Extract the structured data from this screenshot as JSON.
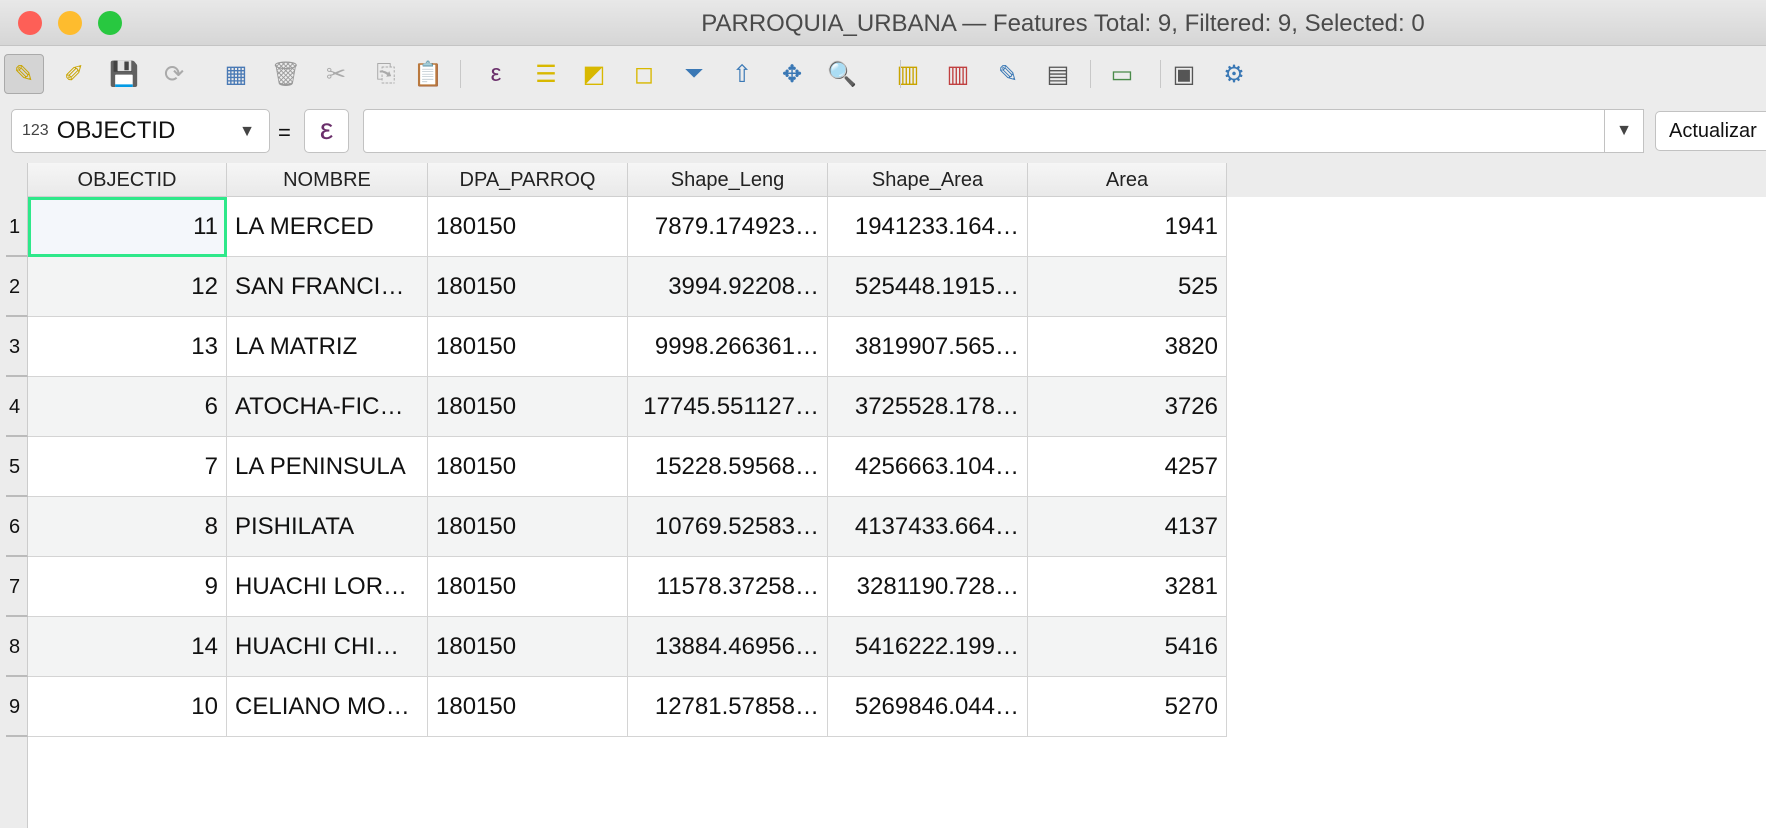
{
  "window": {
    "title": "PARROQUIA_URBANA — Features Total: 9, Filtered: 9, Selected: 0"
  },
  "toolbar": {
    "icons": [
      "toggle-editing-icon",
      "multi-edit-icon",
      "save-edits-icon",
      "reload-icon",
      "add-feature-icon",
      "delete-selected-icon",
      "cut-icon",
      "copy-icon",
      "paste-icon",
      "select-by-expression-icon",
      "select-all-icon",
      "invert-selection-icon",
      "deselect-all-icon",
      "filter-select-icon",
      "move-selection-top-icon",
      "pan-to-selected-icon",
      "zoom-to-selected-icon",
      "new-field-icon",
      "delete-field-icon",
      "open-field-calculator-icon",
      "conditional-formatting-icon",
      "actions-icon",
      "dock-icon",
      "help-icon"
    ]
  },
  "filter": {
    "field_type": "123",
    "field": "OBJECTID",
    "equals": "=",
    "expression_icon": "ε",
    "value": "",
    "update_label": "Actualizar"
  },
  "table": {
    "columns": [
      "OBJECTID",
      "NOMBRE",
      "DPA_PARROQ",
      "Shape_Leng",
      "Shape_Area",
      "Area"
    ],
    "rows": [
      [
        "11",
        "LA MERCED",
        "180150",
        "7879.174923…",
        "1941233.164…",
        "1941"
      ],
      [
        "12",
        "SAN FRANCI…",
        "180150",
        "3994.92208…",
        "525448.1915…",
        "525"
      ],
      [
        "13",
        "LA MATRIZ",
        "180150",
        "9998.266361…",
        "3819907.565…",
        "3820"
      ],
      [
        "6",
        "ATOCHA-FIC…",
        "180150",
        "17745.551127…",
        "3725528.178…",
        "3726"
      ],
      [
        "7",
        "LA PENINSULA",
        "180150",
        "15228.59568…",
        "4256663.104…",
        "4257"
      ],
      [
        "8",
        "PISHILATA",
        "180150",
        "10769.52583…",
        "4137433.664…",
        "4137"
      ],
      [
        "9",
        "HUACHI LOR…",
        "180150",
        "11578.37258…",
        "3281190.728…",
        "3281"
      ],
      [
        "14",
        "HUACHI CHI…",
        "180150",
        "13884.46956…",
        "5416222.199…",
        "5416"
      ],
      [
        "10",
        "CELIANO MO…",
        "180150",
        "12781.57858…",
        "5269846.044…",
        "5270"
      ]
    ],
    "row_numbers": [
      "1",
      "2",
      "3",
      "4",
      "5",
      "6",
      "7",
      "8",
      "9"
    ],
    "selection_color": "#2ee88a"
  }
}
